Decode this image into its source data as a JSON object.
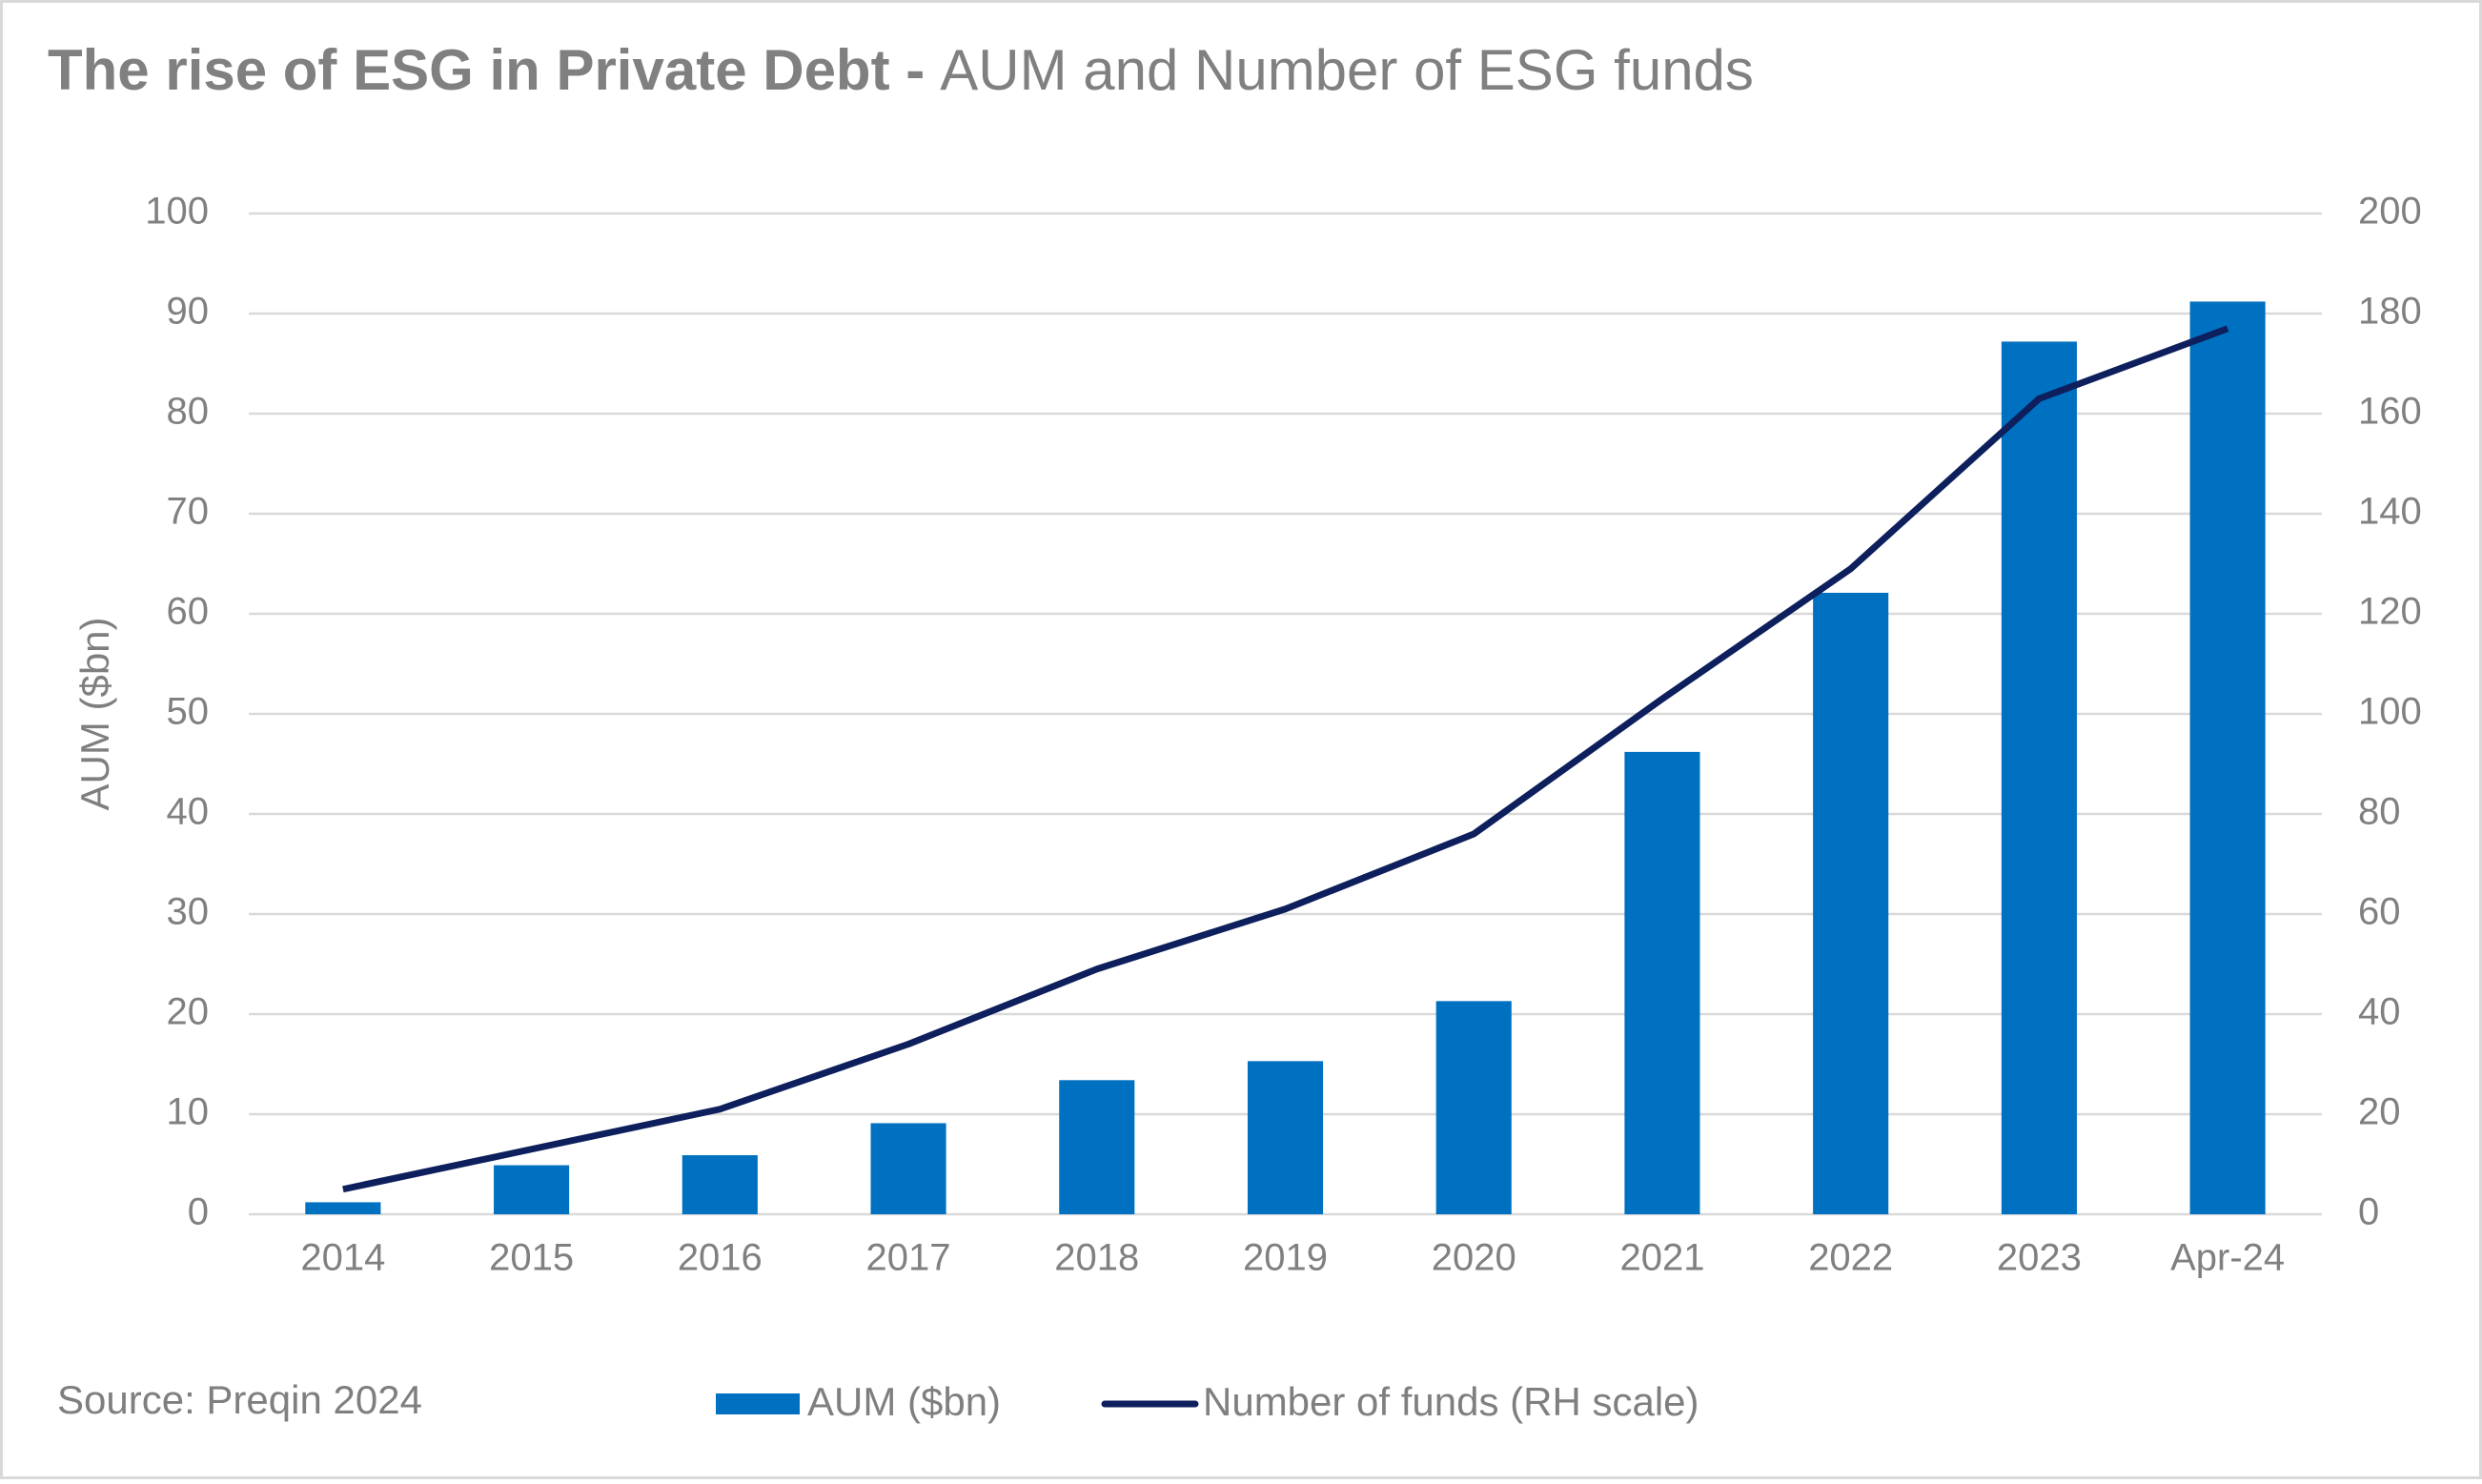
{
  "chart_data": {
    "type": "bar-line",
    "title": "The rise of ESG in Private Debt -",
    "subtitle": "AUM and Number of ESG funds",
    "ylabel": "AUM ($bn)",
    "source": "Source: Preqin 2024",
    "categories": [
      "2014",
      "2015",
      "2016",
      "2017",
      "2018",
      "2019",
      "2020",
      "2021",
      "2022",
      "2023",
      "Apr-24"
    ],
    "series": [
      {
        "name": "AUM ($bn)",
        "type": "bar",
        "color": "#0070c0",
        "values": [
          1.2,
          4.9,
          5.9,
          9.1,
          13.4,
          15.3,
          21.3,
          46.2,
          62.1,
          87.2,
          91.2
        ]
      },
      {
        "name": "Number of funds (RH scale)",
        "type": "line",
        "axis": "y2",
        "color": "#0d1f5c",
        "values": [
          5,
          13,
          21,
          34,
          49,
          61,
          76,
          103,
          129,
          163,
          177
        ]
      }
    ],
    "ylim": [
      0,
      100
    ],
    "yticks": [
      0,
      10,
      20,
      30,
      40,
      50,
      60,
      70,
      80,
      90,
      100
    ],
    "y2lim": [
      0,
      200
    ],
    "y2ticks": [
      0,
      20,
      40,
      60,
      80,
      100,
      120,
      140,
      160,
      180,
      200
    ],
    "grid": true
  }
}
